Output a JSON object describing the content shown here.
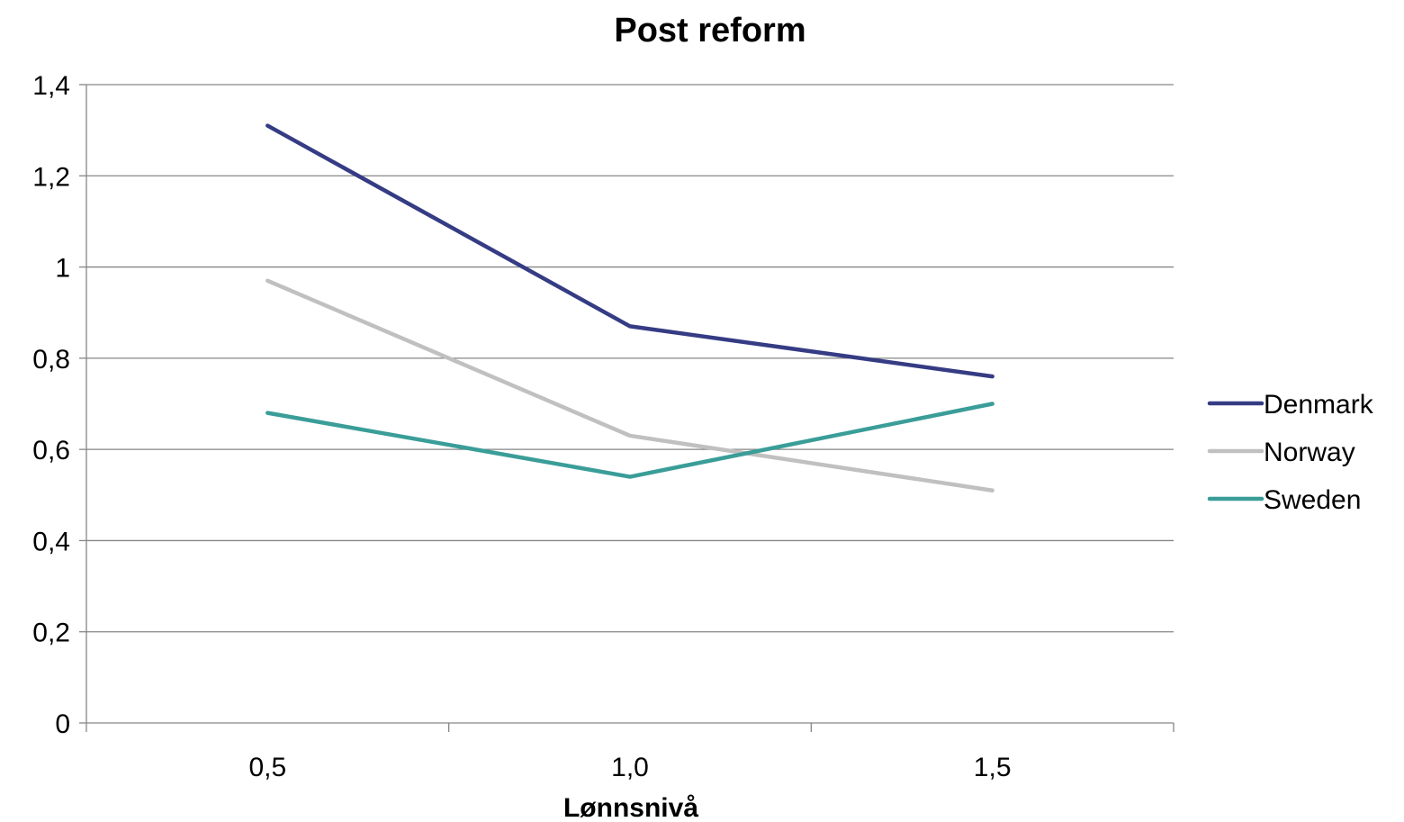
{
  "chart_data": {
    "type": "line",
    "title": "Post reform",
    "xlabel": "Lønnsnivå",
    "ylabel": "",
    "categories": [
      "0,5",
      "1,0",
      "1,5"
    ],
    "ylim": [
      0,
      1.4
    ],
    "yticks": [
      {
        "value": 0,
        "label": "0"
      },
      {
        "value": 0.2,
        "label": "0,2"
      },
      {
        "value": 0.4,
        "label": "0,4"
      },
      {
        "value": 0.6,
        "label": "0,6"
      },
      {
        "value": 0.8,
        "label": "0,8"
      },
      {
        "value": 1.0,
        "label": "1"
      },
      {
        "value": 1.2,
        "label": "1,2"
      },
      {
        "value": 1.4,
        "label": "1,4"
      }
    ],
    "grid": true,
    "legend_position": "right",
    "series": [
      {
        "name": "Denmark",
        "color": "#353c84",
        "values": [
          1.31,
          0.87,
          0.76
        ]
      },
      {
        "name": "Norway",
        "color": "#c0c0c0",
        "values": [
          0.97,
          0.63,
          0.51
        ]
      },
      {
        "name": "Sweden",
        "color": "#3a9d98",
        "values": [
          0.68,
          0.54,
          0.7
        ]
      }
    ]
  }
}
